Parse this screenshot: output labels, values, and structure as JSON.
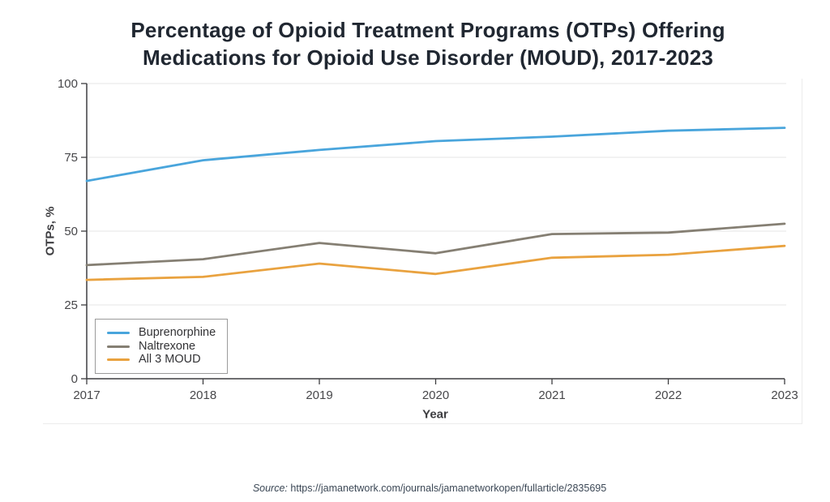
{
  "chart_data": {
    "type": "line",
    "title": "Percentage of Opioid Treatment Programs (OTPs) Offering Medications for Opioid Use Disorder (MOUD), 2017-2023",
    "xlabel": "Year",
    "ylabel": "OTPs, %",
    "x": [
      2017,
      2018,
      2019,
      2020,
      2021,
      2022,
      2023
    ],
    "x_tick_labels": [
      "2017",
      "2018",
      "2019",
      "2020",
      "2021",
      "2022",
      "2023"
    ],
    "ylim": [
      0,
      100
    ],
    "yticks": [
      0,
      25,
      50,
      75,
      100
    ],
    "ytick_labels": [
      "0",
      "25",
      "50",
      "75",
      "100"
    ],
    "grid": "horizontal-only",
    "legend_position": "inside-bottom-left",
    "series": [
      {
        "name": "Buprenorphine",
        "color": "#49a5dc",
        "values": [
          67,
          74,
          77.5,
          80.5,
          82,
          84,
          85
        ]
      },
      {
        "name": "Naltrexone",
        "color": "#857f73",
        "values": [
          38.5,
          40.5,
          46,
          42.5,
          49,
          49.5,
          52.5
        ]
      },
      {
        "name": "All 3 MOUD",
        "color": "#e9a23f",
        "values": [
          33.5,
          34.5,
          39,
          35.5,
          41,
          42,
          45
        ]
      }
    ]
  },
  "source": {
    "label": "Source:",
    "url": "https://jamanetwork.com/journals/jamanetworkopen/fullarticle/2835695"
  },
  "colors": {
    "title": "#202731",
    "tick_text": "#47474a",
    "axis": "#3d3d40",
    "gridline": "#e4e4e4",
    "card_border": "#ececec",
    "legend_border": "#9b9b9b",
    "source_text": "#3c4856"
  }
}
